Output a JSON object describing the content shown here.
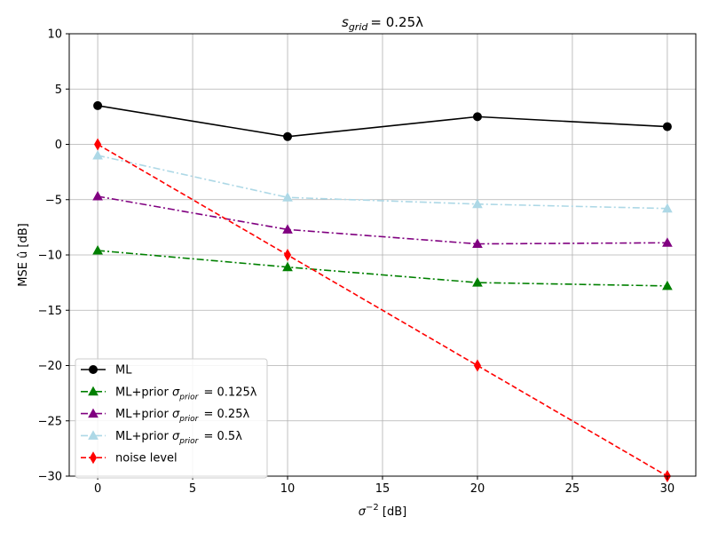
{
  "chart_data": {
    "type": "line",
    "title_main": "s",
    "title_sub": "grid",
    "title_rest": "= 0.25λ",
    "xlabel_main": "σ",
    "xlabel_sup": "−2",
    "xlabel_rest": " [dB]",
    "ylabel": "MSE û [dB]",
    "xlim": [
      -1.5,
      31.5
    ],
    "ylim": [
      -30,
      10
    ],
    "xticks": [
      0,
      5,
      10,
      15,
      20,
      25,
      30
    ],
    "yticks": [
      -30,
      -25,
      -20,
      -15,
      -10,
      -5,
      0,
      5,
      10
    ],
    "xtick_labels": [
      "0",
      "5",
      "10",
      "15",
      "20",
      "25",
      "30"
    ],
    "ytick_labels": [
      "−30",
      "−25",
      "−20",
      "−15",
      "−10",
      "−5",
      "0",
      "5",
      "10"
    ],
    "grid": true,
    "legend_position": "lower-left",
    "x": [
      0,
      10,
      20,
      30
    ],
    "series": [
      {
        "name_main": "ML",
        "name_sigma": "",
        "name_value": "",
        "values": [
          3.5,
          0.7,
          2.5,
          1.6
        ],
        "color": "#000000",
        "dash": "solid",
        "marker": "circle"
      },
      {
        "name_main": "ML+prior ",
        "name_sigma": "prior",
        "name_value": " = 0.125λ",
        "values": [
          -9.6,
          -11.1,
          -12.5,
          -12.8
        ],
        "color": "#008000",
        "dash": "dashdot",
        "marker": "triangle"
      },
      {
        "name_main": "ML+prior ",
        "name_sigma": "prior",
        "name_value": " = 0.25λ",
        "values": [
          -4.7,
          -7.7,
          -9.0,
          -8.9
        ],
        "color": "#800080",
        "dash": "dashdot",
        "marker": "triangle"
      },
      {
        "name_main": "ML+prior ",
        "name_sigma": "prior",
        "name_value": " = 0.5λ",
        "values": [
          -1.0,
          -4.8,
          -5.4,
          -5.8
        ],
        "color": "#add8e6",
        "dash": "dashdot",
        "marker": "triangle"
      },
      {
        "name_main": "noise level",
        "name_sigma": "",
        "name_value": "",
        "values": [
          0,
          -10,
          -20,
          -30
        ],
        "color": "#ff0000",
        "dash": "dashed",
        "marker": "diamond"
      }
    ]
  }
}
